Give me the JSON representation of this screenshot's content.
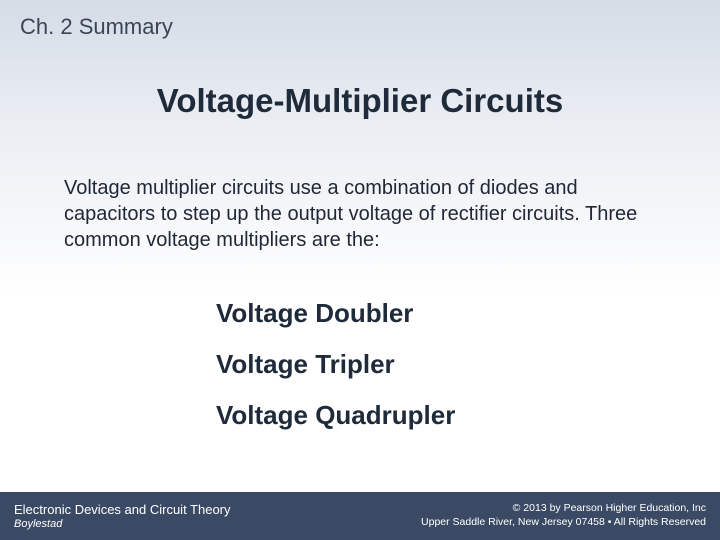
{
  "chapter_label": "Ch. 2 Summary",
  "main_title": "Voltage-Multiplier Circuits",
  "body_text": "Voltage multiplier circuits use a combination of diodes and capacitors to step up the output voltage of rectifier circuits.  Three common voltage multipliers are the:",
  "multipliers": {
    "item0": "Voltage Doubler",
    "item1": "Voltage Tripler",
    "item2": "Voltage Quadrupler"
  },
  "footer": {
    "book_title": "Electronic Devices and Circuit Theory",
    "author": "Boylestad",
    "copyright_line1": "© 2013 by Pearson Higher Education, Inc",
    "copyright_line2": "Upper Saddle River, New Jersey 07458 • All Rights Reserved"
  },
  "colors": {
    "gradient_top": "#d4dce6",
    "gradient_mid": "#e8ecf2",
    "gradient_bottom": "#ffffff",
    "heading_text": "#3a4558",
    "body_text": "#202838",
    "title_text": "#1f2a3a",
    "footer_bg": "#3a4a65",
    "footer_text": "#ffffff"
  },
  "typography": {
    "chapter_label_size": 22,
    "main_title_size": 33,
    "body_text_size": 20,
    "multiplier_size": 26,
    "footer_title_size": 13,
    "footer_author_size": 11,
    "footer_right_size": 10.5
  }
}
